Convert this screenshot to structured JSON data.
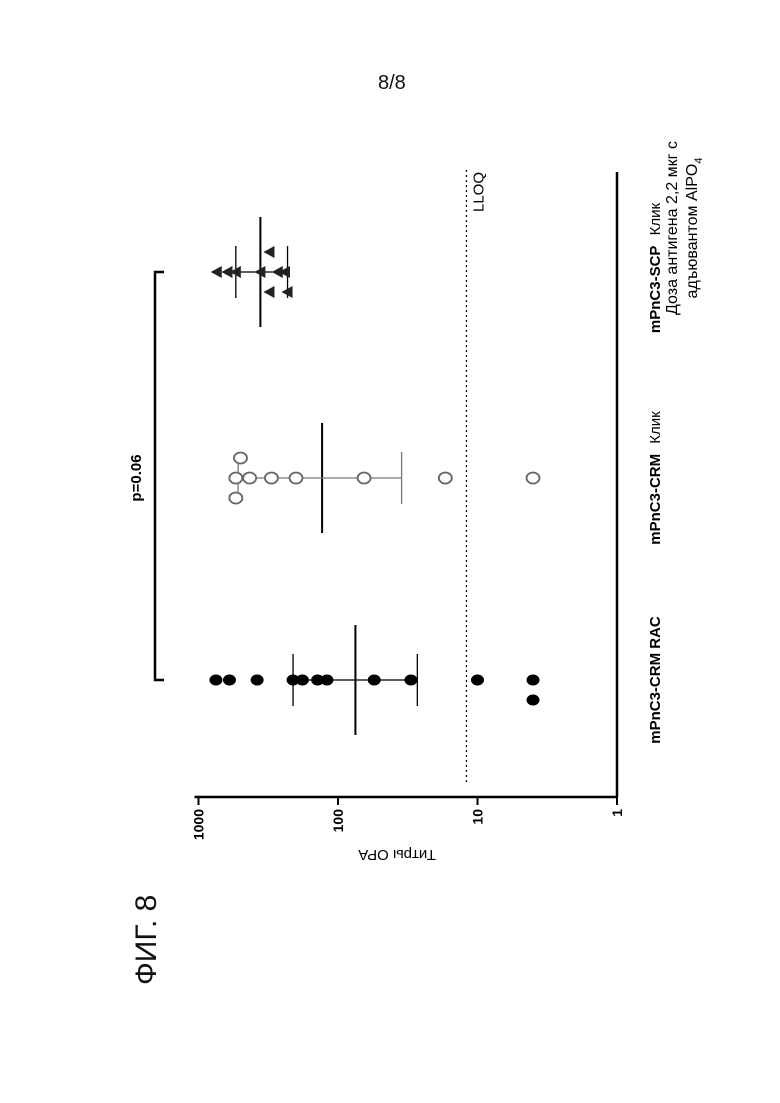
{
  "page_number": "8/8",
  "figure_label": "ФИГ. 8",
  "chart_data": {
    "type": "scatter",
    "ylabel": "Титры OPA",
    "yscale": "log",
    "ylim": [
      1,
      1000
    ],
    "yticks": [
      "1",
      "10",
      "100",
      "1000"
    ],
    "categories": [
      "mPnC3-CRM RAC",
      "mPnC3-CRM Клик",
      "mPnC3-SCP Клик"
    ],
    "category_labels": [
      {
        "bold": "mPnC3-CRM RAC",
        "normal": ""
      },
      {
        "bold": "mPnC3-CRM",
        "normal": "Клик"
      },
      {
        "bold": "mPnC3-SCP",
        "normal": "Клик"
      }
    ],
    "footnote_lines": [
      "Доза антигена 2,2 мкг с",
      "адъювантом AlPO"
    ],
    "footnote_sub": "4",
    "lloq_label": "LLOQ",
    "lloq_value": 12,
    "significance": {
      "label": "p=0.06",
      "from": 0,
      "to": 2
    },
    "series": [
      {
        "category": "mPnC3-CRM RAC",
        "marker": "filled-circle",
        "color": "#000000",
        "values": [
          750,
          600,
          380,
          210,
          120,
          180,
          140,
          55,
          30,
          10,
          4,
          4
        ],
        "mean": 75,
        "ci": [
          27,
          210
        ]
      },
      {
        "category": "mPnC3-CRM Клик",
        "marker": "open-circle",
        "color": "#666666",
        "values": [
          540,
          540,
          500,
          430,
          300,
          200,
          65,
          17,
          4
        ],
        "mean": 130,
        "ci": [
          35,
          520
        ]
      },
      {
        "category": "mPnC3-SCP Клик",
        "marker": "filled-triangle",
        "color": "#222222",
        "values": [
          740,
          620,
          540,
          360,
          310,
          310,
          270,
          240,
          230
        ],
        "mean": 360,
        "ci": [
          230,
          540
        ]
      }
    ]
  }
}
